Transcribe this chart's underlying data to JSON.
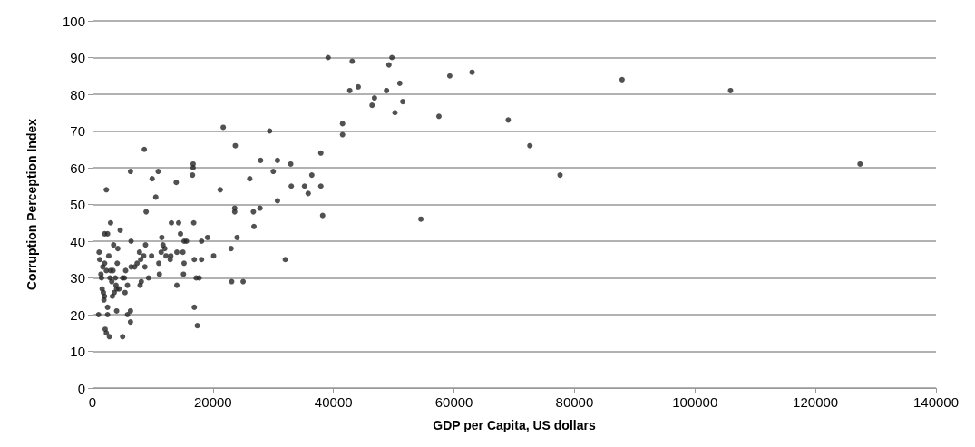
{
  "chart_data": {
    "type": "scatter",
    "xlabel": "GDP per Capita, US dollars",
    "ylabel": "Corruption Perception Index",
    "xlim": [
      0,
      140000
    ],
    "xticks": [
      0,
      20000,
      40000,
      60000,
      80000,
      100000,
      120000,
      140000
    ],
    "ylim": [
      0,
      100
    ],
    "yticks": [
      0,
      10,
      20,
      30,
      40,
      50,
      60,
      70,
      80,
      90,
      100
    ],
    "grid": "y",
    "marker": "circle",
    "series": [
      {
        "color": "#262626",
        "x": [
          1100,
          1200,
          1000,
          1400,
          1500,
          1600,
          1800,
          1900,
          2000,
          1700,
          2000,
          2100,
          2300,
          2500,
          2500,
          2000,
          2300,
          2300,
          2500,
          2700,
          2800,
          2900,
          3000,
          3000,
          3200,
          3400,
          3300,
          3500,
          3600,
          3800,
          3900,
          4000,
          4000,
          4100,
          4200,
          4400,
          4600,
          5000,
          5000,
          5300,
          5500,
          5400,
          5800,
          5800,
          6300,
          6300,
          6300,
          6400,
          6400,
          7000,
          7400,
          7800,
          7900,
          8100,
          8000,
          8500,
          8600,
          8700,
          8800,
          8900,
          9300,
          9800,
          9900,
          10500,
          10900,
          11000,
          11100,
          11400,
          11500,
          11700,
          12000,
          12200,
          12900,
          13000,
          13100,
          13900,
          14000,
          14000,
          14300,
          14600,
          15000,
          15200,
          15100,
          15200,
          15600,
          16600,
          16700,
          16700,
          16800,
          16900,
          16900,
          17200,
          17400,
          17700,
          18100,
          18100,
          19100,
          20100,
          21200,
          21700,
          23000,
          23100,
          23700,
          23600,
          23600,
          24000,
          25000,
          39100,
          43100,
          49700,
          49200,
          59300,
          63000,
          42700,
          44100,
          48800,
          51000,
          46800,
          46400,
          51500,
          50200,
          57500,
          69000,
          41500,
          41500,
          29400,
          37900,
          27900,
          30700,
          32900,
          30000,
          26100,
          36400,
          33000,
          35200,
          37900,
          35800,
          30700,
          26700,
          27800,
          38200,
          54500,
          26800,
          32000,
          72600,
          77600,
          87900,
          105900,
          127400
        ],
        "values": [
          37,
          35,
          20,
          31,
          30,
          27,
          26,
          24,
          25,
          33,
          34,
          16,
          15,
          20,
          22,
          42,
          54,
          32,
          42,
          36,
          14,
          30,
          32,
          45,
          29,
          32,
          25,
          39,
          26,
          30,
          28,
          27,
          21,
          34,
          38,
          27,
          43,
          14,
          30,
          30,
          32,
          26,
          28,
          20,
          21,
          18,
          59,
          40,
          33,
          33,
          34,
          37,
          28,
          29,
          35,
          36,
          65,
          33,
          39,
          48,
          30,
          36,
          57,
          52,
          59,
          34,
          31,
          37,
          41,
          39,
          38,
          36,
          35,
          36,
          45,
          56,
          28,
          37,
          45,
          42,
          37,
          34,
          31,
          40,
          40,
          58,
          61,
          60,
          45,
          35,
          22,
          30,
          17,
          30,
          35,
          40,
          41,
          36,
          54,
          71,
          38,
          29,
          66,
          49,
          48,
          41,
          29,
          90,
          89,
          90,
          88,
          85,
          86,
          81,
          82,
          81,
          83,
          79,
          77,
          78,
          75,
          74,
          73,
          72,
          69,
          70,
          64,
          62,
          62,
          61,
          59,
          57,
          58,
          55,
          55,
          55,
          53,
          51,
          48,
          49,
          47,
          46,
          44,
          35,
          66,
          58,
          84,
          81,
          61
        ]
      }
    ]
  }
}
